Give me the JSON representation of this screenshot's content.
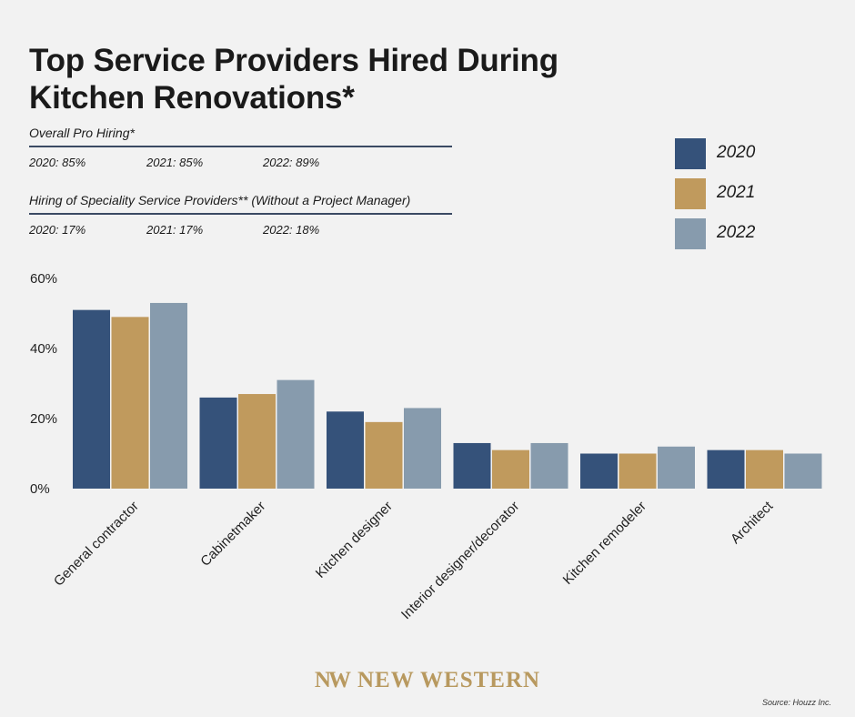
{
  "title_line1": "Top Service Providers Hired During",
  "title_line2": "Kitchen Renovations*",
  "overall": {
    "heading": "Overall Pro Hiring*",
    "stats": [
      "2020: 85%",
      "2021: 85%",
      "2022: 89%"
    ]
  },
  "specialty": {
    "heading": "Hiring of Speciality Service Providers** (Without a Project Manager)",
    "stats": [
      "2020: 17%",
      "2021: 17%",
      "2022: 18%"
    ]
  },
  "logo": {
    "mark": "NW",
    "text": "NEW WESTERN"
  },
  "source": "Source: Houzz Inc.",
  "colors": {
    "2020": "#35527a",
    "2021": "#c09a5d",
    "2022": "#879bad"
  },
  "chart_data": {
    "type": "bar",
    "categories": [
      "General contractor",
      "Cabinetmaker",
      "Kitchen designer",
      "Interior designer/decorator",
      "Kitchen remodeler",
      "Architect"
    ],
    "series": [
      {
        "name": "2020",
        "values": [
          51,
          26,
          22,
          13,
          10,
          11
        ]
      },
      {
        "name": "2021",
        "values": [
          49,
          27,
          19,
          11,
          10,
          11
        ]
      },
      {
        "name": "2022",
        "values": [
          53,
          31,
          23,
          13,
          12,
          10
        ]
      }
    ],
    "ylim": [
      0,
      60
    ],
    "yticks": [
      0,
      20,
      40,
      60
    ],
    "ytick_labels": [
      "0%",
      "20%",
      "40%",
      "60%"
    ],
    "legend_position": "top-right",
    "grid": false
  }
}
